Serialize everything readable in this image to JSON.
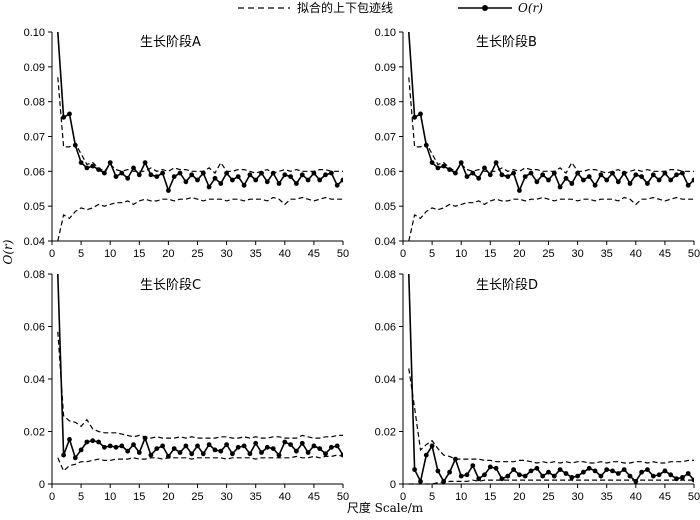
{
  "chart_data": {
    "type": "line",
    "xlabel": "尺度 Scale/m",
    "ylabel": "O(r)",
    "legend": {
      "placement": "top",
      "envelope_label": "拟合的上下包迹线",
      "observed_label": "O(r)"
    },
    "colors": {
      "line": "#000000",
      "background": "#ffffff"
    },
    "xlim": [
      0,
      50
    ],
    "xticks": [
      0,
      5,
      10,
      15,
      20,
      25,
      30,
      35,
      40,
      45,
      50
    ],
    "panels": [
      {
        "title": "生长阶段A",
        "ylim": [
          0.04,
          0.1
        ],
        "yticks": [
          "0.04",
          "0.05",
          "0.06",
          "0.07",
          "0.08",
          "0.09",
          "0.10"
        ],
        "x": [
          1,
          2,
          3,
          4,
          5,
          6,
          7,
          8,
          9,
          10,
          11,
          12,
          13,
          14,
          15,
          16,
          17,
          18,
          19,
          20,
          21,
          22,
          23,
          24,
          25,
          26,
          27,
          28,
          29,
          30,
          31,
          32,
          33,
          34,
          35,
          36,
          37,
          38,
          39,
          40,
          41,
          42,
          43,
          44,
          45,
          46,
          47,
          48,
          49,
          50
        ],
        "series": [
          {
            "name": "O(r)",
            "values": [
              0.1,
              0.0755,
              0.0765,
              0.0675,
              0.0625,
              0.061,
              0.0615,
              0.0605,
              0.0595,
              0.0625,
              0.0585,
              0.0595,
              0.058,
              0.061,
              0.059,
              0.0625,
              0.059,
              0.0585,
              0.0595,
              0.0545,
              0.0585,
              0.0595,
              0.057,
              0.059,
              0.0575,
              0.0595,
              0.0555,
              0.058,
              0.0565,
              0.0595,
              0.0575,
              0.0585,
              0.056,
              0.059,
              0.0575,
              0.0595,
              0.057,
              0.0595,
              0.0565,
              0.059,
              0.0585,
              0.0565,
              0.059,
              0.0575,
              0.0595,
              0.0575,
              0.059,
              0.0595,
              0.056,
              0.0575
            ]
          },
          {
            "name": "upper",
            "values": [
              0.087,
              0.067,
              0.067,
              0.068,
              0.065,
              0.062,
              0.0625,
              0.061,
              0.06,
              0.062,
              0.0605,
              0.06,
              0.0605,
              0.06,
              0.06,
              0.06,
              0.061,
              0.06,
              0.0605,
              0.06,
              0.061,
              0.0605,
              0.0605,
              0.06,
              0.06,
              0.06,
              0.061,
              0.0595,
              0.0625,
              0.06,
              0.06,
              0.0605,
              0.0605,
              0.06,
              0.0595,
              0.06,
              0.0605,
              0.0595,
              0.06,
              0.0605,
              0.06,
              0.0605,
              0.06,
              0.06,
              0.06,
              0.0605,
              0.0605,
              0.06,
              0.06,
              0.06
            ]
          },
          {
            "name": "lower",
            "values": [
              0.04,
              0.0475,
              0.0465,
              0.0485,
              0.0495,
              0.049,
              0.0495,
              0.0505,
              0.05,
              0.0505,
              0.051,
              0.051,
              0.0515,
              0.0505,
              0.0515,
              0.052,
              0.0515,
              0.0515,
              0.052,
              0.052,
              0.0515,
              0.052,
              0.052,
              0.0525,
              0.052,
              0.0515,
              0.052,
              0.052,
              0.052,
              0.0515,
              0.052,
              0.052,
              0.0515,
              0.052,
              0.052,
              0.052,
              0.0515,
              0.0525,
              0.052,
              0.0505,
              0.052,
              0.052,
              0.0525,
              0.052,
              0.0515,
              0.052,
              0.0525,
              0.052,
              0.052,
              0.052
            ]
          }
        ]
      },
      {
        "title": "生长阶段B",
        "ylim": [
          0.04,
          0.1
        ],
        "yticks": [
          "0.04",
          "0.05",
          "0.06",
          "0.07",
          "0.08",
          "0.09",
          "0.10"
        ],
        "x": [
          1,
          2,
          3,
          4,
          5,
          6,
          7,
          8,
          9,
          10,
          11,
          12,
          13,
          14,
          15,
          16,
          17,
          18,
          19,
          20,
          21,
          22,
          23,
          24,
          25,
          26,
          27,
          28,
          29,
          30,
          31,
          32,
          33,
          34,
          35,
          36,
          37,
          38,
          39,
          40,
          41,
          42,
          43,
          44,
          45,
          46,
          47,
          48,
          49,
          50
        ],
        "series": [
          {
            "name": "O(r)",
            "values": [
              0.1,
              0.0755,
              0.0765,
              0.0675,
              0.0625,
              0.061,
              0.0615,
              0.0605,
              0.0595,
              0.0625,
              0.0585,
              0.0595,
              0.058,
              0.061,
              0.059,
              0.0625,
              0.059,
              0.0585,
              0.0595,
              0.0545,
              0.0585,
              0.0595,
              0.057,
              0.059,
              0.0575,
              0.0595,
              0.0555,
              0.058,
              0.0565,
              0.0595,
              0.0575,
              0.0585,
              0.056,
              0.059,
              0.0575,
              0.0595,
              0.057,
              0.0595,
              0.0565,
              0.059,
              0.0585,
              0.0565,
              0.059,
              0.0575,
              0.0595,
              0.0575,
              0.059,
              0.0595,
              0.056,
              0.0575
            ]
          },
          {
            "name": "upper",
            "values": [
              0.087,
              0.067,
              0.067,
              0.068,
              0.065,
              0.062,
              0.0625,
              0.061,
              0.06,
              0.062,
              0.0605,
              0.06,
              0.0605,
              0.06,
              0.06,
              0.06,
              0.061,
              0.06,
              0.0605,
              0.06,
              0.061,
              0.0605,
              0.0605,
              0.06,
              0.06,
              0.06,
              0.061,
              0.0595,
              0.0625,
              0.06,
              0.06,
              0.0605,
              0.0605,
              0.06,
              0.0595,
              0.06,
              0.0605,
              0.0595,
              0.06,
              0.0605,
              0.06,
              0.0605,
              0.06,
              0.06,
              0.06,
              0.0605,
              0.0605,
              0.06,
              0.06,
              0.06
            ]
          },
          {
            "name": "lower",
            "values": [
              0.04,
              0.0475,
              0.0465,
              0.0485,
              0.0495,
              0.049,
              0.0495,
              0.0505,
              0.05,
              0.0505,
              0.051,
              0.051,
              0.0515,
              0.0505,
              0.0515,
              0.052,
              0.0515,
              0.0515,
              0.052,
              0.052,
              0.0515,
              0.052,
              0.052,
              0.0525,
              0.052,
              0.0515,
              0.052,
              0.052,
              0.052,
              0.0515,
              0.052,
              0.052,
              0.0515,
              0.052,
              0.052,
              0.052,
              0.0515,
              0.0525,
              0.052,
              0.0505,
              0.052,
              0.052,
              0.0525,
              0.052,
              0.0515,
              0.052,
              0.0525,
              0.052,
              0.052,
              0.052
            ]
          }
        ]
      },
      {
        "title": "生长阶段C",
        "ylim": [
          0,
          0.08
        ],
        "yticks": [
          "0",
          "0.02",
          "0.04",
          "0.06",
          "0.08"
        ],
        "x": [
          1,
          2,
          3,
          4,
          5,
          6,
          7,
          8,
          9,
          10,
          11,
          12,
          13,
          14,
          15,
          16,
          17,
          18,
          19,
          20,
          21,
          22,
          23,
          24,
          25,
          26,
          27,
          28,
          29,
          30,
          31,
          32,
          33,
          34,
          35,
          36,
          37,
          38,
          39,
          40,
          41,
          42,
          43,
          44,
          45,
          46,
          47,
          48,
          49,
          50
        ],
        "series": [
          {
            "name": "O(r)",
            "values": [
              0.08,
              0.011,
              0.017,
              0.01,
              0.013,
              0.016,
              0.0165,
              0.016,
              0.014,
              0.0145,
              0.014,
              0.0145,
              0.0125,
              0.015,
              0.012,
              0.0175,
              0.011,
              0.0135,
              0.0145,
              0.0105,
              0.0135,
              0.012,
              0.0145,
              0.0115,
              0.0145,
              0.0115,
              0.015,
              0.013,
              0.0125,
              0.015,
              0.0115,
              0.014,
              0.0145,
              0.0115,
              0.0155,
              0.012,
              0.014,
              0.0135,
              0.011,
              0.016,
              0.015,
              0.0125,
              0.0155,
              0.012,
              0.0145,
              0.0135,
              0.0115,
              0.014,
              0.0145,
              0.011
            ]
          },
          {
            "name": "upper",
            "values": [
              0.058,
              0.026,
              0.024,
              0.0235,
              0.022,
              0.0245,
              0.021,
              0.02,
              0.0195,
              0.0195,
              0.0195,
              0.019,
              0.0185,
              0.018,
              0.0185,
              0.018,
              0.0175,
              0.018,
              0.0175,
              0.0175,
              0.0175,
              0.018,
              0.0175,
              0.018,
              0.0175,
              0.0175,
              0.0175,
              0.0175,
              0.018,
              0.018,
              0.0175,
              0.0175,
              0.018,
              0.0175,
              0.018,
              0.0175,
              0.0175,
              0.018,
              0.018,
              0.0175,
              0.0175,
              0.0175,
              0.0185,
              0.018,
              0.0175,
              0.0175,
              0.018,
              0.018,
              0.0185,
              0.0185
            ]
          },
          {
            "name": "lower",
            "values": [
              0.01,
              0.005,
              0.007,
              0.0075,
              0.0085,
              0.0085,
              0.009,
              0.0095,
              0.009,
              0.009,
              0.0095,
              0.0095,
              0.0095,
              0.01,
              0.0095,
              0.0095,
              0.01,
              0.01,
              0.0095,
              0.01,
              0.01,
              0.01,
              0.01,
              0.0095,
              0.01,
              0.01,
              0.01,
              0.01,
              0.01,
              0.0095,
              0.01,
              0.01,
              0.01,
              0.01,
              0.0095,
              0.01,
              0.01,
              0.01,
              0.01,
              0.01,
              0.01,
              0.0105,
              0.01,
              0.01,
              0.0105,
              0.01,
              0.0105,
              0.0105,
              0.011,
              0.0105
            ]
          }
        ]
      },
      {
        "title": "生长阶段D",
        "ylim": [
          0,
          0.08
        ],
        "yticks": [
          "0",
          "0.02",
          "0.04",
          "0.06",
          "0.08"
        ],
        "x": [
          1,
          2,
          3,
          4,
          5,
          6,
          7,
          8,
          9,
          10,
          11,
          12,
          13,
          14,
          15,
          16,
          17,
          18,
          19,
          20,
          21,
          22,
          23,
          24,
          25,
          26,
          27,
          28,
          29,
          30,
          31,
          32,
          33,
          34,
          35,
          36,
          37,
          38,
          39,
          40,
          41,
          42,
          43,
          44,
          45,
          46,
          47,
          48,
          49,
          50
        ],
        "series": [
          {
            "name": "O(r)",
            "values": [
              0.08,
              0.0055,
              0.001,
              0.011,
              0.0145,
              0.005,
              0.001,
              0.0045,
              0.0095,
              0.003,
              0.0035,
              0.007,
              0.002,
              0.0035,
              0.0065,
              0.006,
              0.002,
              0.003,
              0.0055,
              0.0035,
              0.003,
              0.005,
              0.006,
              0.003,
              0.0045,
              0.003,
              0.0055,
              0.004,
              0.0025,
              0.003,
              0.0045,
              0.006,
              0.005,
              0.003,
              0.0055,
              0.005,
              0.004,
              0.0055,
              0.003,
              0.001,
              0.0045,
              0.0055,
              0.003,
              0.0035,
              0.005,
              0.0035,
              0.002,
              0.0025,
              0.004,
              0.0015
            ]
          },
          {
            "name": "upper",
            "values": [
              0.044,
              0.029,
              0.013,
              0.015,
              0.0165,
              0.0135,
              0.011,
              0.0105,
              0.0095,
              0.0095,
              0.0095,
              0.0095,
              0.0095,
              0.009,
              0.009,
              0.0085,
              0.0085,
              0.0085,
              0.0085,
              0.009,
              0.009,
              0.0085,
              0.008,
              0.0085,
              0.008,
              0.0085,
              0.008,
              0.0085,
              0.008,
              0.0085,
              0.0085,
              0.008,
              0.008,
              0.0085,
              0.008,
              0.0085,
              0.0085,
              0.008,
              0.008,
              0.0085,
              0.0085,
              0.008,
              0.0085,
              0.008,
              0.008,
              0.0085,
              0.0085,
              0.0085,
              0.009,
              0.009
            ]
          },
          {
            "name": "lower",
            "values": [
              0.0,
              0.0,
              0.0,
              0.0,
              0.0,
              0.0005,
              0.0005,
              0.001,
              0.001,
              0.001,
              0.001,
              0.0015,
              0.001,
              0.0015,
              0.0015,
              0.0015,
              0.0015,
              0.0015,
              0.0015,
              0.0015,
              0.0015,
              0.0015,
              0.0015,
              0.0015,
              0.0015,
              0.0015,
              0.0015,
              0.0015,
              0.0015,
              0.0015,
              0.0015,
              0.0015,
              0.0015,
              0.0015,
              0.0015,
              0.0015,
              0.0015,
              0.0015,
              0.0015,
              0.0015,
              0.0015,
              0.0015,
              0.0015,
              0.0015,
              0.0015,
              0.0015,
              0.0015,
              0.0015,
              0.0015,
              0.0015
            ]
          }
        ]
      }
    ]
  }
}
